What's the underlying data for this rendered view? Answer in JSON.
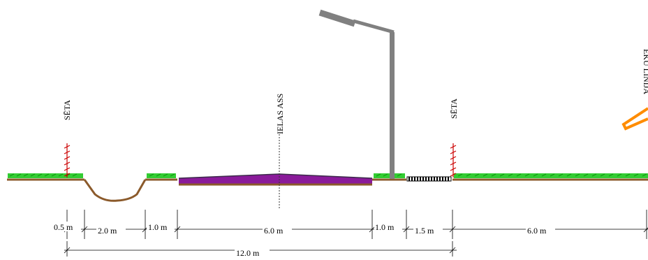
{
  "labels": {
    "seta_left": "SĒTA",
    "road_center": "IELAS ASS",
    "seta_right": "SĒTA",
    "building_edge": "ĒKU LĪNIJA"
  },
  "dimensions": [
    {
      "id": "d1",
      "text": "0.5 m"
    },
    {
      "id": "d2",
      "text": "2.0 m"
    },
    {
      "id": "d3",
      "text": "1.0 m"
    },
    {
      "id": "d4",
      "text": "6.0 m"
    },
    {
      "id": "d5",
      "text": "1.0 m"
    },
    {
      "id": "d6",
      "text": "1.5 m"
    },
    {
      "id": "d7",
      "text": "6.0 m"
    },
    {
      "id": "total",
      "text": "12.0 m"
    }
  ],
  "colors": {
    "ground": "#8b5a2b",
    "grass": "#33cc33",
    "asphalt_top": "#6b2a7a",
    "asphalt_main": "#8a1a9a",
    "pole": "#808080",
    "fence": "#cc0000",
    "building": "#ff8c00"
  }
}
